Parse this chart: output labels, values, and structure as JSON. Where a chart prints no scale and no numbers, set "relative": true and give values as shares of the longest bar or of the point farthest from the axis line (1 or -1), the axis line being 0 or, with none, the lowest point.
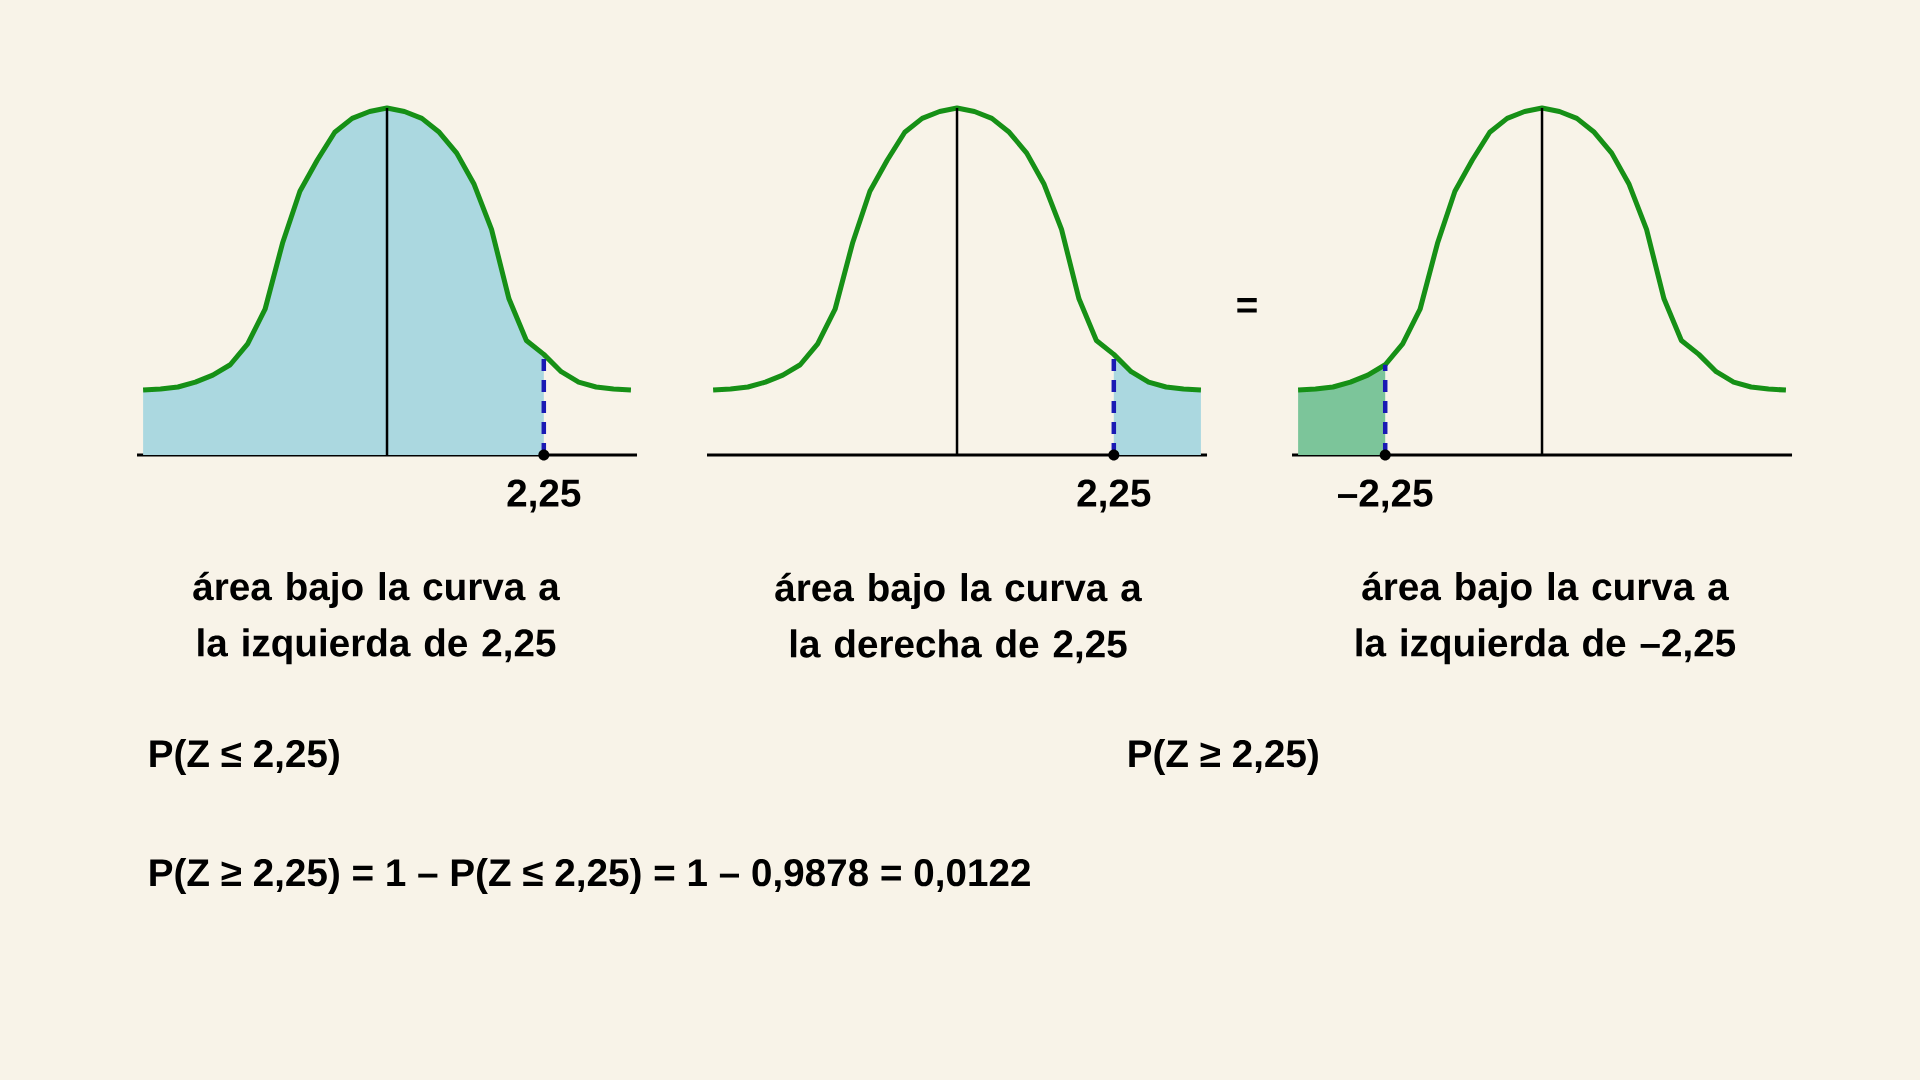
{
  "chart_data": [
    {
      "type": "line",
      "relative": true,
      "categories": [
        null,
        null,
        null,
        null,
        null,
        null,
        null,
        null,
        null,
        null,
        null,
        null,
        null,
        null,
        null,
        null,
        null,
        null,
        null,
        null,
        null,
        null,
        null,
        null,
        null,
        null,
        null,
        null,
        null
      ],
      "series": [
        {
          "color": "#169016",
          "values": [
            0.187,
            0.19,
            0.196,
            0.21,
            0.23,
            0.26,
            0.32,
            0.42,
            0.61,
            0.76,
            0.85,
            0.93,
            0.97,
            0.99,
            1,
            0.99,
            0.97,
            0.93,
            0.87,
            0.78,
            0.65,
            0.45,
            0.33,
            0.29,
            0.24,
            0.21,
            0.196,
            0.19,
            0.187
          ]
        },
        {
          "type": "area",
          "color": "#abd8e0",
          "values": [
            0.187,
            0.19,
            0.196,
            0.21,
            0.23,
            0.26,
            0.32,
            0.42,
            0.61,
            0.76,
            0.85,
            0.93,
            0.97,
            0.99,
            1,
            0.99,
            0.97,
            0.93,
            0.87,
            0.78,
            0.65,
            0.45,
            0.33,
            0.29,
            null,
            null,
            null,
            null,
            null
          ]
        }
      ],
      "annotations": [
        "2,25",
        "área bajo la curva a la izquierda de 2,25",
        "P(Z ≤ 2,25)",
        "P(Z ≥ 2,25) = 1 – P(Z ≤ 2,25) = 1 – 0,9878 = 0,0122"
      ]
    },
    {
      "type": "line",
      "relative": true,
      "categories": [
        null,
        null,
        null,
        null,
        null,
        null,
        null,
        null,
        null,
        null,
        null,
        null,
        null,
        null,
        null,
        null,
        null,
        null,
        null,
        null,
        null,
        null,
        null,
        null,
        null,
        null,
        null,
        null,
        null
      ],
      "series": [
        {
          "color": "#169016",
          "values": [
            0.187,
            0.19,
            0.196,
            0.21,
            0.23,
            0.26,
            0.32,
            0.42,
            0.61,
            0.76,
            0.85,
            0.93,
            0.97,
            0.99,
            1,
            0.99,
            0.97,
            0.93,
            0.87,
            0.78,
            0.65,
            0.45,
            0.33,
            0.29,
            0.24,
            0.21,
            0.196,
            0.19,
            0.187
          ]
        },
        {
          "type": "area",
          "color": "#abd8e0",
          "values": [
            null,
            null,
            null,
            null,
            null,
            null,
            null,
            null,
            null,
            null,
            null,
            null,
            null,
            null,
            null,
            null,
            null,
            null,
            null,
            null,
            null,
            null,
            null,
            0.29,
            0.24,
            0.21,
            0.196,
            0.19,
            0.187
          ]
        }
      ],
      "annotations": [
        "2,25",
        "área bajo la curva a la derecha de 2,25"
      ]
    },
    {
      "type": "line",
      "relative": true,
      "categories": [
        null,
        null,
        null,
        null,
        null,
        null,
        null,
        null,
        null,
        null,
        null,
        null,
        null,
        null,
        null,
        null,
        null,
        null,
        null,
        null,
        null,
        null,
        null,
        null,
        null,
        null,
        null,
        null,
        null
      ],
      "series": [
        {
          "color": "#169016",
          "values": [
            0.187,
            0.19,
            0.196,
            0.21,
            0.23,
            0.26,
            0.32,
            0.42,
            0.61,
            0.76,
            0.85,
            0.93,
            0.97,
            0.99,
            1,
            0.99,
            0.97,
            0.93,
            0.87,
            0.78,
            0.65,
            0.45,
            0.33,
            0.29,
            0.24,
            0.21,
            0.196,
            0.19,
            0.187
          ]
        },
        {
          "type": "area",
          "color": "#7cc59a",
          "values": [
            0.187,
            0.19,
            0.196,
            0.21,
            0.23,
            0.26,
            null,
            null,
            null,
            null,
            null,
            null,
            null,
            null,
            null,
            null,
            null,
            null,
            null,
            null,
            null,
            null,
            null,
            null,
            null,
            null,
            null,
            null,
            null
          ]
        }
      ],
      "annotations": [
        "–2,25",
        "=",
        "área bajo la curva a la izquierda de –2,25",
        "P(Z ≥ 2,25)"
      ]
    }
  ]
}
